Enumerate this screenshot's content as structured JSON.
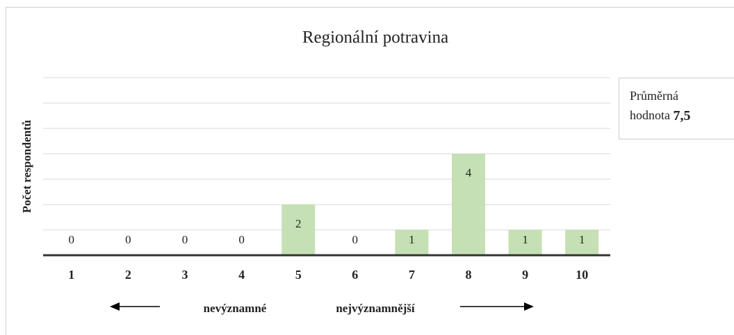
{
  "chart_data": {
    "type": "bar",
    "title": "Regionální potravina",
    "y_label": "Počet respondentů",
    "categories": [
      "1",
      "2",
      "3",
      "4",
      "5",
      "6",
      "7",
      "8",
      "9",
      "10"
    ],
    "values": [
      0,
      0,
      0,
      0,
      2,
      0,
      1,
      4,
      1,
      1
    ],
    "color": "#c5e0b4",
    "ylim": [
      0,
      7
    ],
    "yticks": [
      0,
      1,
      2,
      3,
      4,
      5,
      6,
      7
    ],
    "grid": true,
    "scale_labels": {
      "low": "nevýznamné",
      "high": "nejvýznamnější"
    },
    "annotation": {
      "line1": "Průměrná",
      "line2": "hodnota",
      "value": "7,5"
    }
  }
}
